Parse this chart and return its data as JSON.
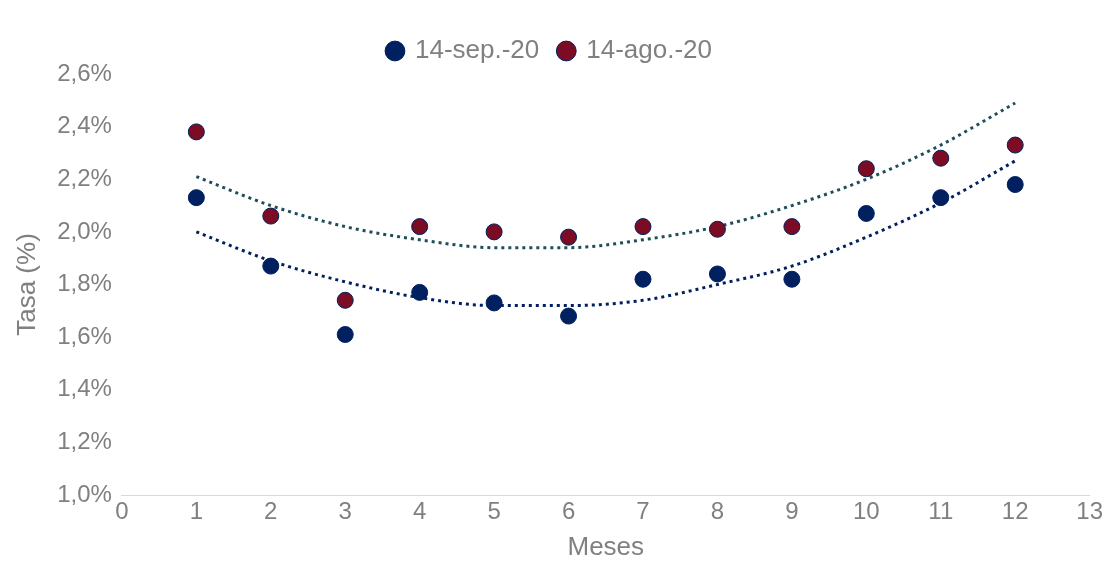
{
  "chart_data": {
    "type": "scatter",
    "xlabel": "Meses",
    "ylabel": "Tasa (%)",
    "legend": "top",
    "grid": false,
    "x": [
      1,
      2,
      3,
      4,
      5,
      6,
      7,
      8,
      9,
      10,
      11,
      12
    ],
    "xlim": [
      0,
      13
    ],
    "xticks": [
      0,
      1,
      2,
      3,
      4,
      5,
      6,
      7,
      8,
      9,
      10,
      11,
      12,
      13
    ],
    "ylim": [
      1.0,
      2.6
    ],
    "yticks": [
      {
        "value": 1.0,
        "label": "1,0%"
      },
      {
        "value": 1.2,
        "label": "1,2%"
      },
      {
        "value": 1.4,
        "label": "1,4%"
      },
      {
        "value": 1.6,
        "label": "1,6%"
      },
      {
        "value": 1.8,
        "label": "1,8%"
      },
      {
        "value": 2.0,
        "label": "2,0%"
      },
      {
        "value": 2.2,
        "label": "2,2%"
      },
      {
        "value": 2.4,
        "label": "2,4%"
      },
      {
        "value": 2.6,
        "label": "2,6%"
      }
    ],
    "series": [
      {
        "name": "14-sep.-20",
        "marker": "circle",
        "color": "#002060",
        "values": [
          2.13,
          1.87,
          1.61,
          1.77,
          1.73,
          1.68,
          1.82,
          1.84,
          1.82,
          2.07,
          2.13,
          2.18
        ]
      },
      {
        "name": "14-ago.-20",
        "marker": "circle",
        "color": "#7b0c24",
        "values": [
          2.38,
          2.06,
          1.74,
          2.02,
          2.0,
          1.98,
          2.02,
          2.01,
          2.02,
          2.24,
          2.28,
          2.33
        ]
      },
      {
        "type": "line",
        "line_style": "dotted",
        "color": "#002060",
        "x": [
          1,
          2,
          3,
          4,
          5,
          6,
          7,
          8,
          9,
          10,
          11,
          12
        ],
        "values": [
          2.0,
          1.89,
          1.81,
          1.75,
          1.72,
          1.72,
          1.74,
          1.8,
          1.87,
          1.98,
          2.11,
          2.27
        ]
      },
      {
        "type": "line",
        "line_style": "dotted",
        "color": "#1f4e5a",
        "x": [
          1,
          2,
          3,
          4,
          5,
          6,
          7,
          8,
          9,
          10,
          11,
          12
        ],
        "values": [
          2.21,
          2.1,
          2.02,
          1.97,
          1.94,
          1.94,
          1.97,
          2.02,
          2.1,
          2.2,
          2.33,
          2.49
        ]
      }
    ]
  }
}
